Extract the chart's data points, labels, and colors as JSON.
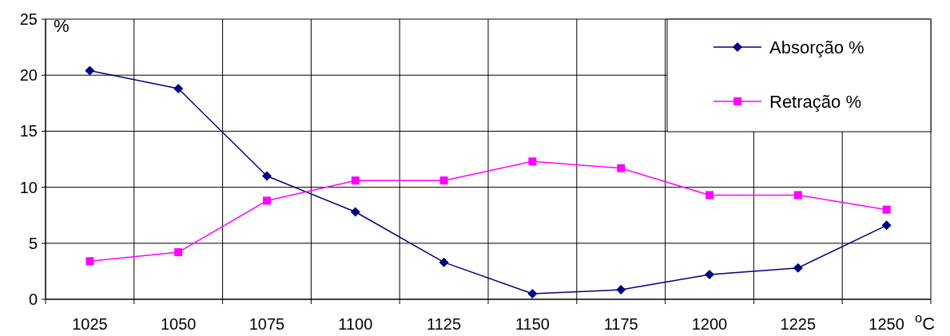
{
  "chart_data": {
    "type": "line",
    "xlabel": "$^{o}$C",
    "ylabel": "%",
    "categories": [
      "1025",
      "1050",
      "1075",
      "1100",
      "1125",
      "1150",
      "1175",
      "1200",
      "1225",
      "1250"
    ],
    "series": [
      {
        "name": "Absorção %",
        "color": "#000080",
        "marker": "diamond",
        "values": [
          20.4,
          18.8,
          11.0,
          7.8,
          3.3,
          0.5,
          0.85,
          2.2,
          2.8,
          6.6
        ]
      },
      {
        "name": "Retração %",
        "color": "#ff00ff",
        "marker": "square",
        "values": [
          3.4,
          4.2,
          8.8,
          10.6,
          10.6,
          12.3,
          11.7,
          9.3,
          9.3,
          8.0
        ]
      }
    ],
    "ylim": [
      0,
      25
    ],
    "yticks": [
      0,
      5,
      10,
      15,
      20,
      25
    ],
    "grid": true,
    "legend": "top right"
  }
}
